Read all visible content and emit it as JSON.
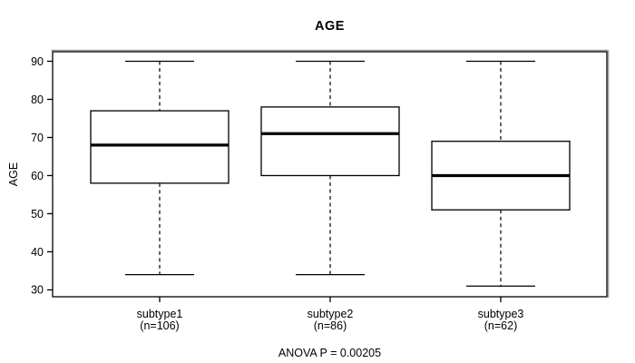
{
  "window": {
    "background": "#ffffff",
    "foreground": "#000000"
  },
  "chart_data": {
    "type": "boxplot",
    "title": "AGE",
    "ylabel": "AGE",
    "xlabel": "",
    "ylim": [
      28.2,
      92.5
    ],
    "yticks": [
      30,
      40,
      50,
      60,
      70,
      80,
      90
    ],
    "grid": false,
    "legend": "none",
    "categories": [
      "subtype1",
      "subtype2",
      "subtype3"
    ],
    "n_labels": [
      "(n=106)",
      "(n=86)",
      "(n=62)"
    ],
    "series": [
      {
        "name": "subtype1",
        "n": 106,
        "whisker_low": 34,
        "q1": 58,
        "median": 68,
        "q3": 77,
        "whisker_high": 90
      },
      {
        "name": "subtype2",
        "n": 86,
        "whisker_low": 34,
        "q1": 60,
        "median": 71,
        "q3": 78,
        "whisker_high": 90
      },
      {
        "name": "subtype3",
        "n": 62,
        "whisker_low": 31,
        "q1": 51,
        "median": 60,
        "q3": 69,
        "whisker_high": 90
      }
    ],
    "annotation": "ANOVA P = 0.00205",
    "box_fill": "#ffffff",
    "stroke_color": "#000000",
    "frame_shadow_color": "#9e9e9e"
  }
}
